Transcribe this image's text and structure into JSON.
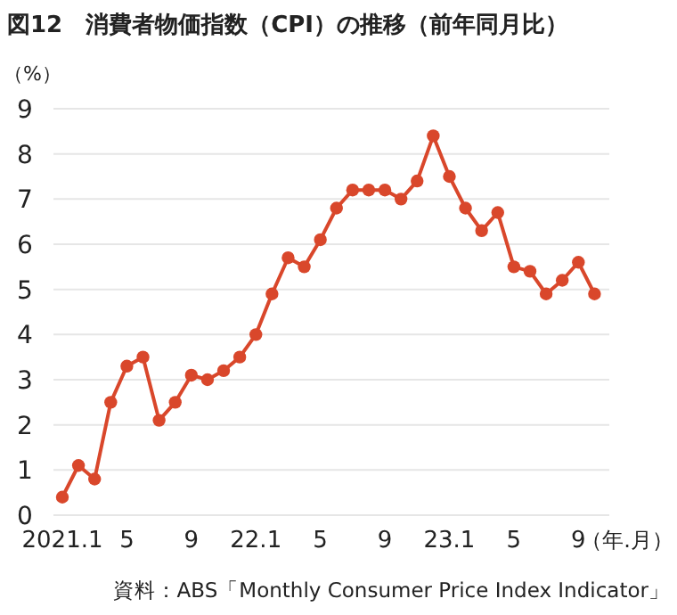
{
  "chart_data": {
    "type": "line",
    "title": "図12　消費者物価指数（CPI）の推移（前年同月比）",
    "ylabel": "（%）",
    "xlabel": "（年.月）",
    "categories": [
      "2021.1",
      null,
      null,
      null,
      "5",
      null,
      null,
      null,
      "9",
      null,
      null,
      null,
      "22.1",
      null,
      null,
      null,
      "5",
      null,
      null,
      null,
      "9",
      null,
      null,
      null,
      "23.1",
      null,
      null,
      null,
      "5",
      null,
      null,
      null,
      "9",
      null
    ],
    "series": [
      {
        "color": "#d9472b",
        "values": [
          0.4,
          1.1,
          0.8,
          2.5,
          3.3,
          3.5,
          2.1,
          2.5,
          3.1,
          3.0,
          3.2,
          3.5,
          4.0,
          4.9,
          5.7,
          5.5,
          6.1,
          6.8,
          7.2,
          7.2,
          7.2,
          7.0,
          7.4,
          8.4,
          7.5,
          6.8,
          6.3,
          6.7,
          5.5,
          5.4,
          4.9,
          5.2,
          5.6,
          4.9
        ]
      }
    ],
    "ylim": [
      0,
      9
    ],
    "yticks": [
      0,
      1,
      2,
      3,
      4,
      5,
      6,
      7,
      8,
      9
    ],
    "grid": "y",
    "marker": "circle",
    "annotations": [
      "資料：ABS「Monthly Consumer Price Index Indicator」"
    ]
  }
}
